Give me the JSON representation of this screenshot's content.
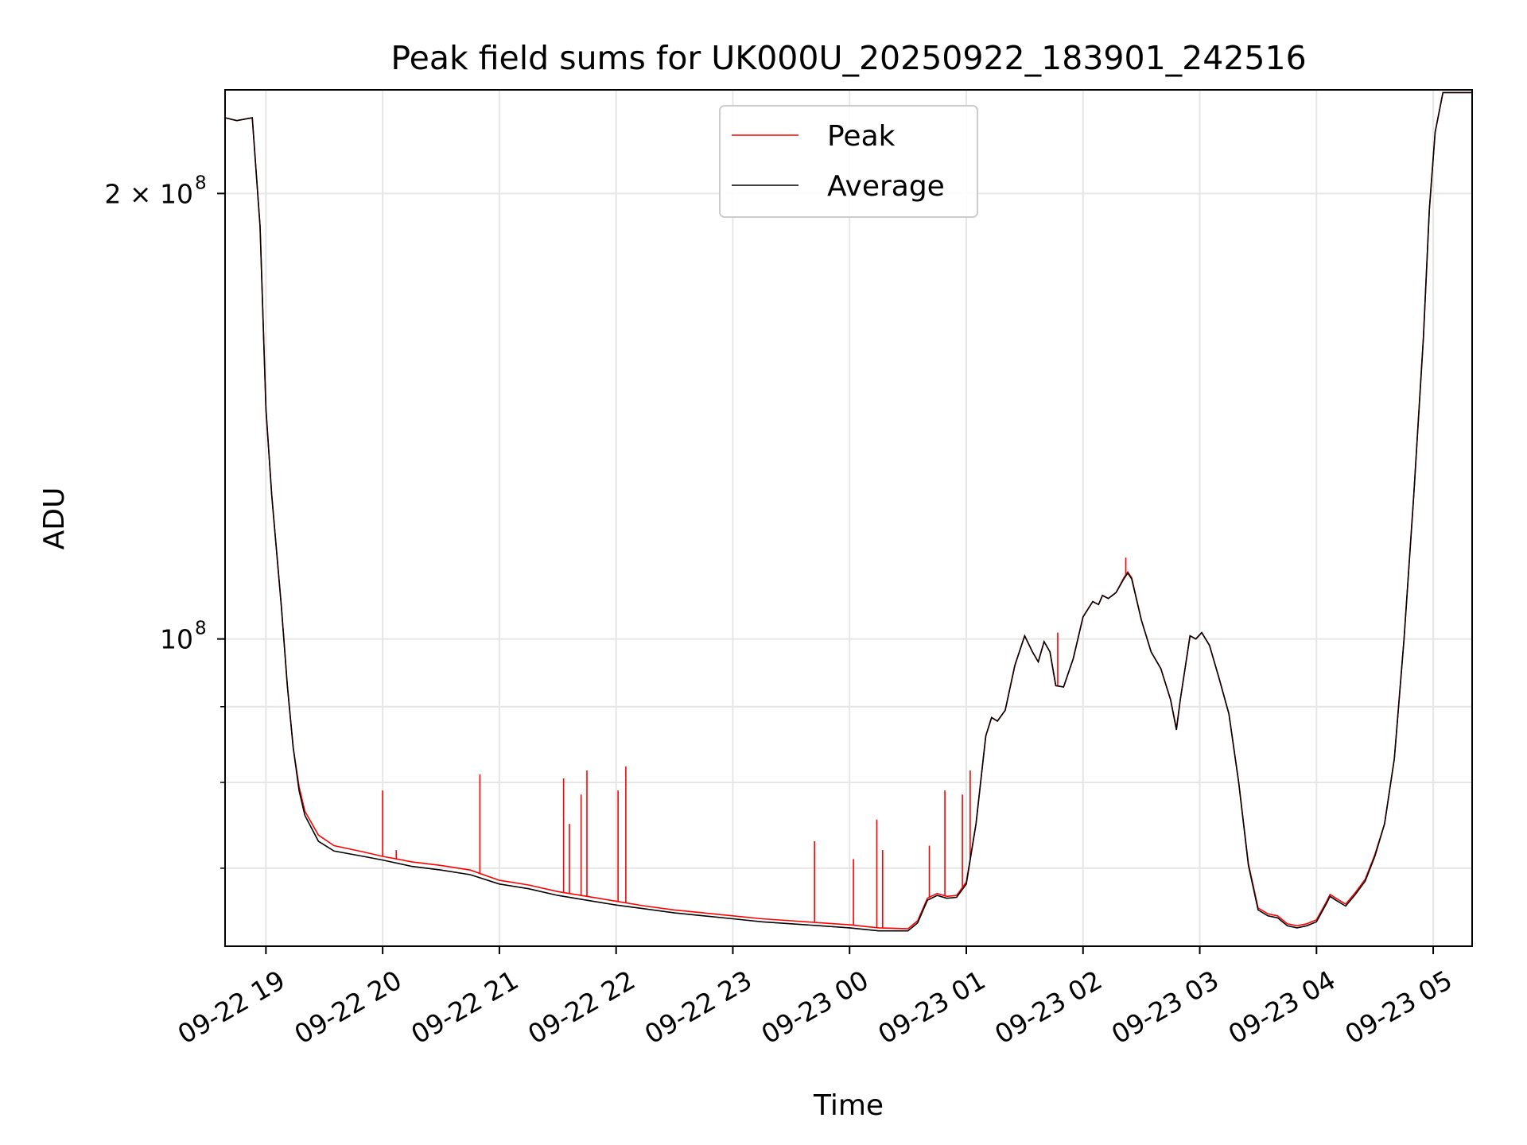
{
  "chart_data": {
    "type": "line",
    "title": "Peak field sums for UK000U_20250922_183901_242516",
    "xlabel": "Time",
    "ylabel": "ADU",
    "y_scale": "log",
    "ylim": [
      62000000,
      235000000
    ],
    "xlim": [
      "2025-09-22 18:39",
      "2025-09-23 05:20"
    ],
    "grid": true,
    "legend_position": "upper center",
    "x_ticks": [
      {
        "t": "2025-09-22 19:00",
        "label": "09-22 19"
      },
      {
        "t": "2025-09-22 20:00",
        "label": "09-22 20"
      },
      {
        "t": "2025-09-22 21:00",
        "label": "09-22 21"
      },
      {
        "t": "2025-09-22 22:00",
        "label": "09-22 22"
      },
      {
        "t": "2025-09-22 23:00",
        "label": "09-22 23"
      },
      {
        "t": "2025-09-23 00:00",
        "label": "09-23 00"
      },
      {
        "t": "2025-09-23 01:00",
        "label": "09-23 01"
      },
      {
        "t": "2025-09-23 02:00",
        "label": "09-23 02"
      },
      {
        "t": "2025-09-23 03:00",
        "label": "09-23 03"
      },
      {
        "t": "2025-09-23 04:00",
        "label": "09-23 04"
      },
      {
        "t": "2025-09-23 05:00",
        "label": "09-23 05"
      }
    ],
    "y_ticks_major": [
      {
        "value": 100000000,
        "label": "10",
        "sup": "8"
      },
      {
        "value": 200000000,
        "label": "2 × 10",
        "sup": "8"
      }
    ],
    "y_ticks_minor": [
      70000000,
      80000000,
      90000000
    ],
    "series": [
      {
        "name": "Peak",
        "color": "#ff0000",
        "points": [
          [
            "2025-09-22 18:39",
            225000000
          ],
          [
            "2025-09-22 18:45",
            224000000
          ],
          [
            "2025-09-22 18:53",
            225000000
          ],
          [
            "2025-09-22 18:57",
            190000000
          ],
          [
            "2025-09-22 19:00",
            143000000
          ],
          [
            "2025-09-22 19:03",
            125000000
          ],
          [
            "2025-09-22 19:08",
            105000000
          ],
          [
            "2025-09-22 19:11",
            93000000
          ],
          [
            "2025-09-22 19:14",
            84500000
          ],
          [
            "2025-09-22 19:17",
            79500000
          ],
          [
            "2025-09-22 19:20",
            76500000
          ],
          [
            "2025-09-22 19:27",
            73700000
          ],
          [
            "2025-09-22 19:35",
            72500000
          ],
          [
            "2025-09-22 19:50",
            71800000
          ],
          [
            "2025-09-22 20:00",
            71300000
          ],
          [
            "2025-09-22 20:15",
            70700000
          ],
          [
            "2025-09-22 20:30",
            70300000
          ],
          [
            "2025-09-22 20:45",
            69800000
          ],
          [
            "2025-09-22 21:00",
            68700000
          ],
          [
            "2025-09-22 21:15",
            68200000
          ],
          [
            "2025-09-22 21:30",
            67500000
          ],
          [
            "2025-09-22 21:45",
            67000000
          ],
          [
            "2025-09-22 22:00",
            66500000
          ],
          [
            "2025-09-22 22:15",
            66000000
          ],
          [
            "2025-09-22 22:30",
            65600000
          ],
          [
            "2025-09-22 22:45",
            65300000
          ],
          [
            "2025-09-22 23:00",
            65000000
          ],
          [
            "2025-09-22 23:15",
            64700000
          ],
          [
            "2025-09-22 23:30",
            64500000
          ],
          [
            "2025-09-22 23:45",
            64300000
          ],
          [
            "2025-09-23 00:00",
            64100000
          ],
          [
            "2025-09-23 00:15",
            63800000
          ],
          [
            "2025-09-23 00:30",
            63700000
          ],
          [
            "2025-09-23 00:35",
            64500000
          ],
          [
            "2025-09-23 00:40",
            66800000
          ],
          [
            "2025-09-23 00:45",
            67300000
          ],
          [
            "2025-09-23 00:50",
            67000000
          ],
          [
            "2025-09-23 00:55",
            67100000
          ],
          [
            "2025-09-23 01:00",
            68500000
          ],
          [
            "2025-09-23 01:05",
            75000000
          ],
          [
            "2025-09-23 01:10",
            86000000
          ],
          [
            "2025-09-23 01:13",
            88500000
          ],
          [
            "2025-09-23 01:16",
            88000000
          ],
          [
            "2025-09-23 01:20",
            89500000
          ],
          [
            "2025-09-23 01:25",
            96000000
          ],
          [
            "2025-09-23 01:30",
            100500000
          ],
          [
            "2025-09-23 01:34",
            98000000
          ],
          [
            "2025-09-23 01:37",
            96500000
          ],
          [
            "2025-09-23 01:40",
            99600000
          ],
          [
            "2025-09-23 01:43",
            98000000
          ],
          [
            "2025-09-23 01:46",
            93000000
          ],
          [
            "2025-09-23 01:50",
            92800000
          ],
          [
            "2025-09-23 01:55",
            97000000
          ],
          [
            "2025-09-23 02:00",
            103500000
          ],
          [
            "2025-09-23 02:05",
            106000000
          ],
          [
            "2025-09-23 02:08",
            105500000
          ],
          [
            "2025-09-23 02:10",
            107000000
          ],
          [
            "2025-09-23 02:13",
            106500000
          ],
          [
            "2025-09-23 02:17",
            107500000
          ],
          [
            "2025-09-23 02:21",
            110000000
          ],
          [
            "2025-09-23 02:23",
            111000000
          ],
          [
            "2025-09-23 02:25",
            110000000
          ],
          [
            "2025-09-23 02:30",
            103000000
          ],
          [
            "2025-09-23 02:35",
            98000000
          ],
          [
            "2025-09-23 02:40",
            95500000
          ],
          [
            "2025-09-23 02:45",
            91000000
          ],
          [
            "2025-09-23 02:48",
            87000000
          ],
          [
            "2025-09-23 02:50",
            91000000
          ],
          [
            "2025-09-23 02:55",
            100500000
          ],
          [
            "2025-09-23 02:58",
            100000000
          ],
          [
            "2025-09-23 03:01",
            101000000
          ],
          [
            "2025-09-23 03:05",
            99000000
          ],
          [
            "2025-09-23 03:10",
            94000000
          ],
          [
            "2025-09-23 03:15",
            89000000
          ],
          [
            "2025-09-23 03:20",
            80000000
          ],
          [
            "2025-09-23 03:25",
            70500000
          ],
          [
            "2025-09-23 03:30",
            65800000
          ],
          [
            "2025-09-23 03:35",
            65200000
          ],
          [
            "2025-09-23 03:40",
            65000000
          ],
          [
            "2025-09-23 03:45",
            64200000
          ],
          [
            "2025-09-23 03:50",
            64000000
          ],
          [
            "2025-09-23 03:55",
            64200000
          ],
          [
            "2025-09-23 04:00",
            64600000
          ],
          [
            "2025-09-23 04:05",
            66400000
          ],
          [
            "2025-09-23 04:07",
            67200000
          ],
          [
            "2025-09-23 04:10",
            66800000
          ],
          [
            "2025-09-23 04:15",
            66200000
          ],
          [
            "2025-09-23 04:20",
            67400000
          ],
          [
            "2025-09-23 04:25",
            68800000
          ],
          [
            "2025-09-23 04:30",
            71500000
          ],
          [
            "2025-09-23 04:35",
            75000000
          ],
          [
            "2025-09-23 04:40",
            83000000
          ],
          [
            "2025-09-23 04:45",
            100000000
          ],
          [
            "2025-09-23 04:50",
            125000000
          ],
          [
            "2025-09-23 04:55",
            160000000
          ],
          [
            "2025-09-23 04:58",
            195000000
          ],
          [
            "2025-09-23 05:01",
            220000000
          ],
          [
            "2025-09-23 05:05",
            234000000
          ],
          [
            "2025-09-23 05:20",
            234000000
          ]
        ],
        "spikes": [
          [
            "2025-09-22 20:00",
            79000000
          ],
          [
            "2025-09-22 20:07",
            72000000
          ],
          [
            "2025-09-22 20:50",
            81000000
          ],
          [
            "2025-09-22 21:33",
            80500000
          ],
          [
            "2025-09-22 21:36",
            75000000
          ],
          [
            "2025-09-22 21:42",
            78500000
          ],
          [
            "2025-09-22 21:45",
            81500000
          ],
          [
            "2025-09-22 22:01",
            79000000
          ],
          [
            "2025-09-22 22:05",
            82000000
          ],
          [
            "2025-09-22 23:42",
            73000000
          ],
          [
            "2025-09-23 00:02",
            71000000
          ],
          [
            "2025-09-23 00:14",
            75500000
          ],
          [
            "2025-09-23 00:17",
            72000000
          ],
          [
            "2025-09-23 00:41",
            72500000
          ],
          [
            "2025-09-23 00:49",
            79000000
          ],
          [
            "2025-09-23 00:58",
            78500000
          ],
          [
            "2025-09-23 01:02",
            81500000
          ],
          [
            "2025-09-23 01:47",
            101000000
          ],
          [
            "2025-09-23 02:22",
            113500000
          ]
        ]
      },
      {
        "name": "Average",
        "color": "#000000",
        "points": [
          [
            "2025-09-22 18:39",
            225000000
          ],
          [
            "2025-09-22 18:45",
            224000000
          ],
          [
            "2025-09-22 18:53",
            225000000
          ],
          [
            "2025-09-22 18:57",
            190000000
          ],
          [
            "2025-09-22 19:00",
            143000000
          ],
          [
            "2025-09-22 19:03",
            125000000
          ],
          [
            "2025-09-22 19:08",
            105000000
          ],
          [
            "2025-09-22 19:11",
            93000000
          ],
          [
            "2025-09-22 19:14",
            84500000
          ],
          [
            "2025-09-22 19:17",
            79000000
          ],
          [
            "2025-09-22 19:20",
            76000000
          ],
          [
            "2025-09-22 19:27",
            73000000
          ],
          [
            "2025-09-22 19:35",
            71900000
          ],
          [
            "2025-09-22 19:50",
            71300000
          ],
          [
            "2025-09-22 20:00",
            70900000
          ],
          [
            "2025-09-22 20:15",
            70200000
          ],
          [
            "2025-09-22 20:30",
            69800000
          ],
          [
            "2025-09-22 20:45",
            69300000
          ],
          [
            "2025-09-22 21:00",
            68300000
          ],
          [
            "2025-09-22 21:15",
            67800000
          ],
          [
            "2025-09-22 21:30",
            67100000
          ],
          [
            "2025-09-22 21:45",
            66600000
          ],
          [
            "2025-09-22 22:00",
            66100000
          ],
          [
            "2025-09-22 22:15",
            65700000
          ],
          [
            "2025-09-22 22:30",
            65300000
          ],
          [
            "2025-09-22 22:45",
            65000000
          ],
          [
            "2025-09-22 23:00",
            64700000
          ],
          [
            "2025-09-22 23:15",
            64400000
          ],
          [
            "2025-09-22 23:30",
            64200000
          ],
          [
            "2025-09-22 23:45",
            64000000
          ],
          [
            "2025-09-23 00:00",
            63800000
          ],
          [
            "2025-09-23 00:15",
            63500000
          ],
          [
            "2025-09-23 00:30",
            63500000
          ],
          [
            "2025-09-23 00:35",
            64300000
          ],
          [
            "2025-09-23 00:40",
            66600000
          ],
          [
            "2025-09-23 00:45",
            67100000
          ],
          [
            "2025-09-23 00:50",
            66800000
          ],
          [
            "2025-09-23 00:55",
            66900000
          ],
          [
            "2025-09-23 01:00",
            68300000
          ],
          [
            "2025-09-23 01:05",
            75000000
          ],
          [
            "2025-09-23 01:10",
            86000000
          ],
          [
            "2025-09-23 01:13",
            88500000
          ],
          [
            "2025-09-23 01:16",
            88000000
          ],
          [
            "2025-09-23 01:20",
            89500000
          ],
          [
            "2025-09-23 01:25",
            96000000
          ],
          [
            "2025-09-23 01:30",
            100500000
          ],
          [
            "2025-09-23 01:34",
            98000000
          ],
          [
            "2025-09-23 01:37",
            96500000
          ],
          [
            "2025-09-23 01:40",
            99600000
          ],
          [
            "2025-09-23 01:43",
            98000000
          ],
          [
            "2025-09-23 01:46",
            93000000
          ],
          [
            "2025-09-23 01:50",
            92800000
          ],
          [
            "2025-09-23 01:55",
            97000000
          ],
          [
            "2025-09-23 02:00",
            103500000
          ],
          [
            "2025-09-23 02:05",
            106000000
          ],
          [
            "2025-09-23 02:08",
            105500000
          ],
          [
            "2025-09-23 02:10",
            107000000
          ],
          [
            "2025-09-23 02:13",
            106500000
          ],
          [
            "2025-09-23 02:17",
            107500000
          ],
          [
            "2025-09-23 02:21",
            109800000
          ],
          [
            "2025-09-23 02:23",
            110800000
          ],
          [
            "2025-09-23 02:25",
            109800000
          ],
          [
            "2025-09-23 02:30",
            103000000
          ],
          [
            "2025-09-23 02:35",
            98000000
          ],
          [
            "2025-09-23 02:40",
            95500000
          ],
          [
            "2025-09-23 02:45",
            91000000
          ],
          [
            "2025-09-23 02:48",
            86800000
          ],
          [
            "2025-09-23 02:50",
            91000000
          ],
          [
            "2025-09-23 02:55",
            100500000
          ],
          [
            "2025-09-23 02:58",
            100000000
          ],
          [
            "2025-09-23 03:01",
            101000000
          ],
          [
            "2025-09-23 03:05",
            99000000
          ],
          [
            "2025-09-23 03:10",
            94000000
          ],
          [
            "2025-09-23 03:15",
            89000000
          ],
          [
            "2025-09-23 03:20",
            80000000
          ],
          [
            "2025-09-23 03:25",
            70300000
          ],
          [
            "2025-09-23 03:30",
            65600000
          ],
          [
            "2025-09-23 03:35",
            65000000
          ],
          [
            "2025-09-23 03:40",
            64800000
          ],
          [
            "2025-09-23 03:45",
            64000000
          ],
          [
            "2025-09-23 03:50",
            63800000
          ],
          [
            "2025-09-23 03:55",
            64000000
          ],
          [
            "2025-09-23 04:00",
            64400000
          ],
          [
            "2025-09-23 04:05",
            66200000
          ],
          [
            "2025-09-23 04:07",
            67000000
          ],
          [
            "2025-09-23 04:10",
            66600000
          ],
          [
            "2025-09-23 04:15",
            66000000
          ],
          [
            "2025-09-23 04:20",
            67200000
          ],
          [
            "2025-09-23 04:25",
            68600000
          ],
          [
            "2025-09-23 04:30",
            71300000
          ],
          [
            "2025-09-23 04:35",
            75000000
          ],
          [
            "2025-09-23 04:40",
            83000000
          ],
          [
            "2025-09-23 04:45",
            100000000
          ],
          [
            "2025-09-23 04:50",
            125000000
          ],
          [
            "2025-09-23 04:55",
            160000000
          ],
          [
            "2025-09-23 04:58",
            195000000
          ],
          [
            "2025-09-23 05:01",
            220000000
          ],
          [
            "2025-09-23 05:05",
            234000000
          ],
          [
            "2025-09-23 05:20",
            234000000
          ]
        ]
      }
    ]
  }
}
